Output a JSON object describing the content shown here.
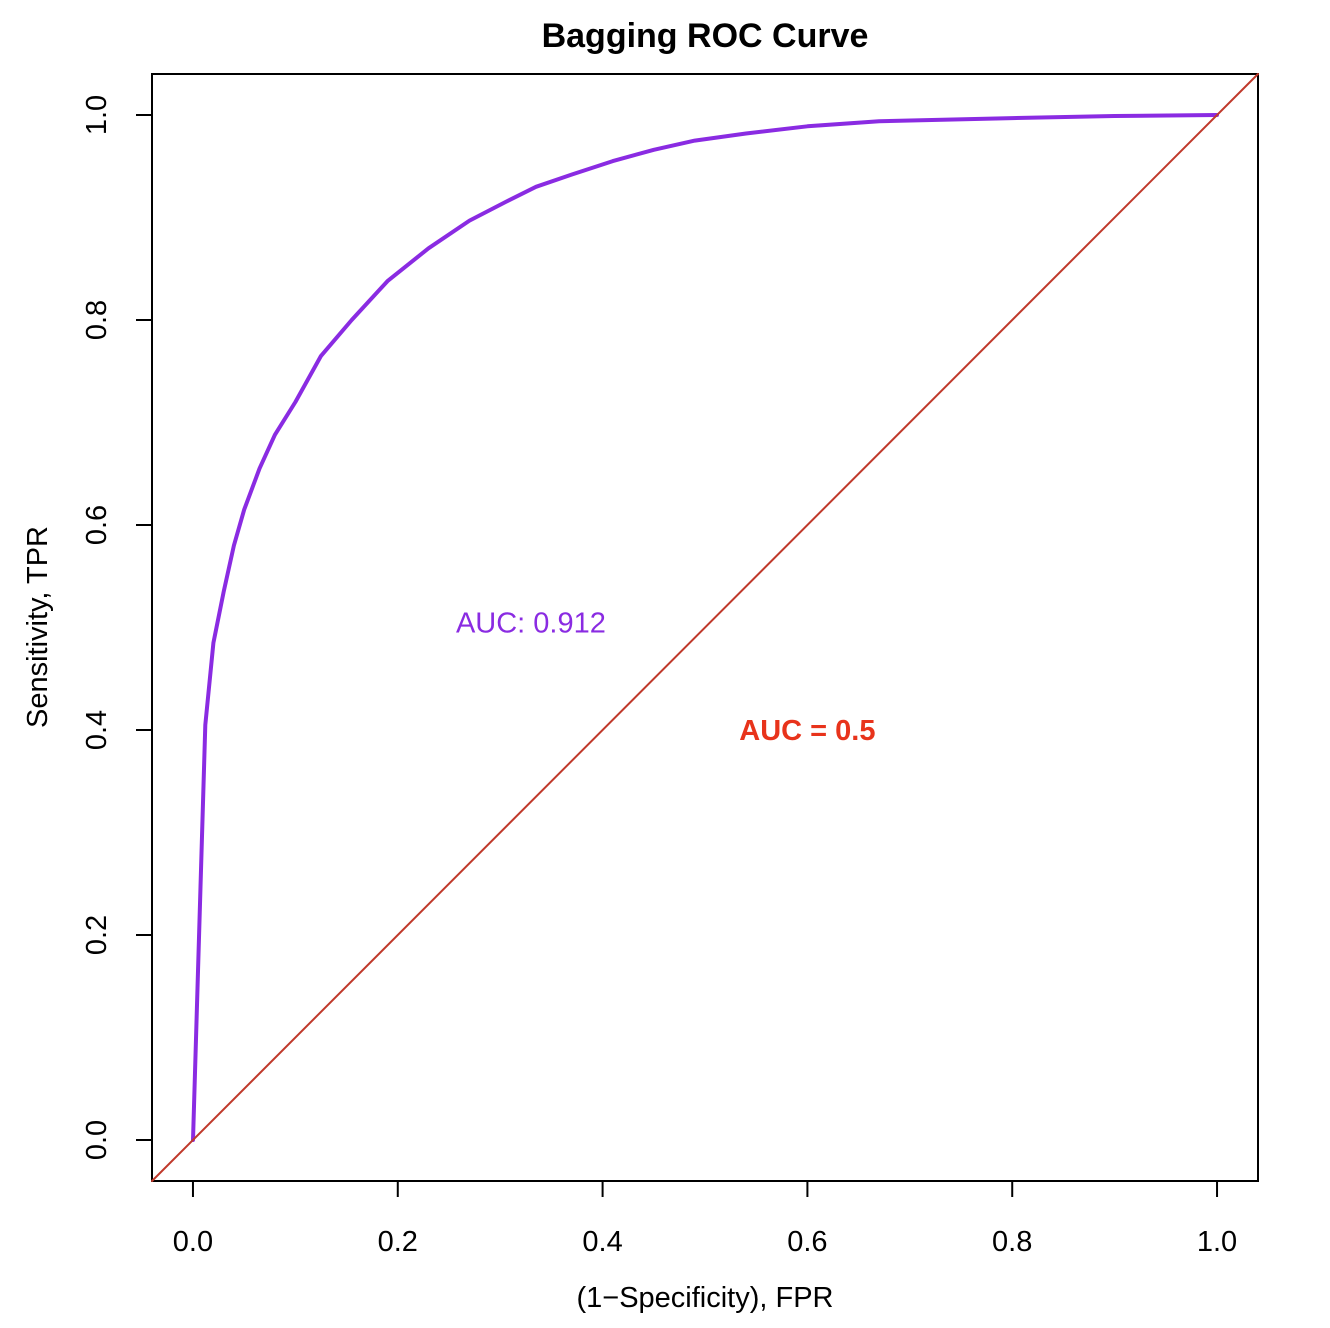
{
  "chart_data": {
    "type": "line",
    "title": "Bagging ROC Curve",
    "xlabel": "(1−Specificity), FPR",
    "ylabel": "Sensitivity, TPR",
    "xlim": [
      -0.04,
      1.04
    ],
    "ylim": [
      -0.04,
      1.04
    ],
    "xticks": [
      "0.0",
      "0.2",
      "0.4",
      "0.6",
      "0.8",
      "1.0"
    ],
    "yticks": [
      "0.0",
      "0.2",
      "0.4",
      "0.6",
      "0.8",
      "1.0"
    ],
    "grid": false,
    "series": [
      {
        "color": "#8a2be2",
        "x": [
          0.0,
          0.012,
          0.02,
          0.03,
          0.04,
          0.05,
          0.065,
          0.08,
          0.1,
          0.125,
          0.155,
          0.19,
          0.23,
          0.27,
          0.305,
          0.335,
          0.37,
          0.41,
          0.45,
          0.49,
          0.54,
          0.6,
          0.67,
          0.8,
          0.9,
          1.0
        ],
        "y": [
          0.0,
          0.405,
          0.485,
          0.535,
          0.58,
          0.615,
          0.655,
          0.688,
          0.72,
          0.765,
          0.8,
          0.838,
          0.87,
          0.897,
          0.915,
          0.93,
          0.942,
          0.955,
          0.966,
          0.975,
          0.982,
          0.989,
          0.994,
          0.997,
          0.999,
          1.0
        ]
      },
      {
        "color": "#c0392b",
        "x": [
          -0.04,
          1.04
        ],
        "y": [
          -0.04,
          1.04
        ]
      }
    ],
    "annotations": [
      {
        "text": "AUC: 0.912",
        "x": 0.33,
        "y": 0.505,
        "color": "#8a2be2",
        "bold": false
      },
      {
        "text": "AUC = 0.5",
        "x": 0.6,
        "y": 0.4,
        "color": "#e8331b",
        "bold": true
      }
    ]
  }
}
